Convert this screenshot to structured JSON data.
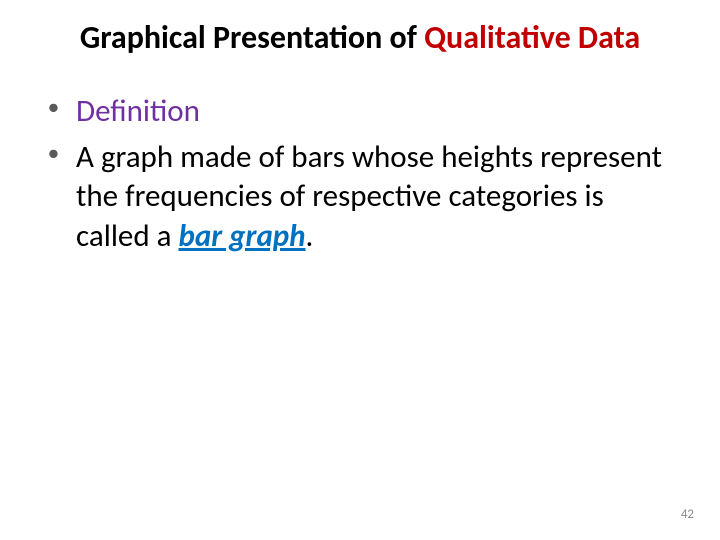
{
  "title": {
    "part1": "Graphical Presentation of ",
    "part2": "Qualitative Data",
    "color_dark": "#000000",
    "color_red": "#c00000",
    "fontsize": 32,
    "fontweight": 700
  },
  "bullets": {
    "definition_label": "Definition",
    "definition_color": "#7030a0",
    "body_pre": "A graph made of bars whose heights represent the frequencies of respective categories is called a ",
    "term": "bar graph",
    "body_post": ".",
    "term_color": "#0070c0",
    "bullet_marker_color": "#595959",
    "fontsize": 31
  },
  "page_number": "42",
  "page_number_color": "#898989",
  "background_color": "#ffffff"
}
